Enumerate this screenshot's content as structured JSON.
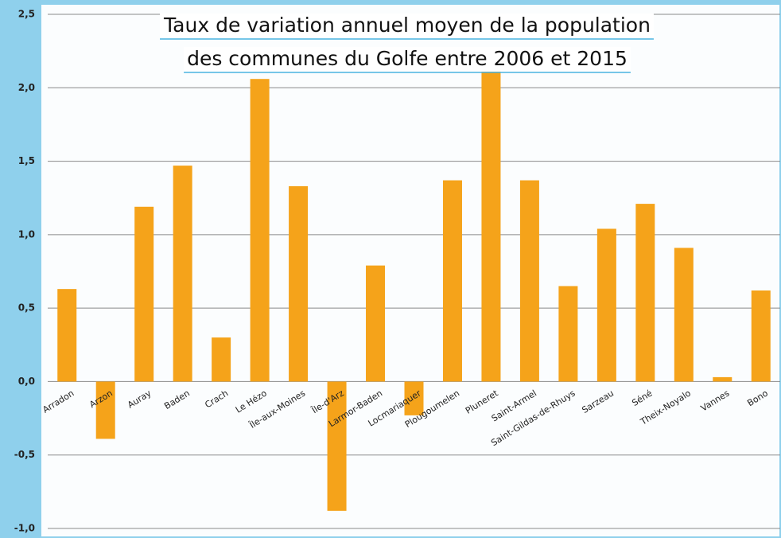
{
  "chart_data": {
    "type": "bar",
    "title": [
      "Taux de variation annuel moyen de la population",
      "des communes du Golfe entre 2006 et 2015"
    ],
    "categories": [
      "Arradon",
      "Arzon",
      "Auray",
      "Baden",
      "Crach",
      "Le Hézo",
      "Île-aux-Moines",
      "Île-d'Arz",
      "Larmor-Baden",
      "Locmariaquer",
      "Plougoumelen",
      "Pluneret",
      "Saint-Armel",
      "Saint-Gildas-de-Rhuys",
      "Sarzeau",
      "Séné",
      "Theix-Noyalo",
      "Vannes",
      "Bono"
    ],
    "values": [
      0.63,
      -0.39,
      1.19,
      1.47,
      0.3,
      2.06,
      1.33,
      -0.88,
      0.79,
      -0.23,
      1.37,
      2.25,
      1.37,
      0.65,
      1.04,
      1.21,
      0.91,
      0.03,
      0.62
    ],
    "color": "#f5a31a",
    "ylim": [
      -1.0,
      2.5
    ],
    "yticks": [
      {
        "value": -1.0,
        "label": "-1,0"
      },
      {
        "value": -0.5,
        "label": "-0,5"
      },
      {
        "value": 0,
        "label": "0,0"
      },
      {
        "value": 0.5,
        "label": "0,5"
      },
      {
        "value": 1.0,
        "label": "1,0"
      },
      {
        "value": 1.5,
        "label": "1,5"
      },
      {
        "value": 2.0,
        "label": "2,0"
      },
      {
        "value": 2.5,
        "label": "2,5"
      }
    ],
    "grid": true
  }
}
